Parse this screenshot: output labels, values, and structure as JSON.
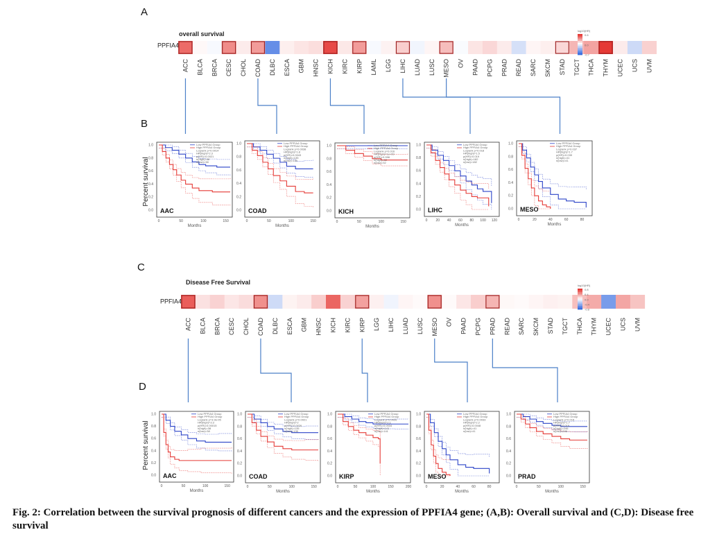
{
  "panel_labels": {
    "a": "A",
    "b": "B",
    "c": "C",
    "d": "D"
  },
  "caption": "Fig. 2: Correlation between the survival prognosis of different cancers and the expression of PPFIA4 gene; (A,B): Overall survival and (C,D): Disease free survival",
  "colors": {
    "high": "#e53935",
    "low": "#2b43c8",
    "pos": "#e53935",
    "neg": "#3b6fe0",
    "connector": "#4a7fc8",
    "box": "#9a2020"
  },
  "chart_data": [
    {
      "type": "heatmap",
      "title": "overall survival",
      "row_label": "PPFIA4",
      "legend_title": "log10(HR)",
      "legend_ticks": [
        "0.6",
        "0.0",
        "-0.7"
      ],
      "vmin": -0.7,
      "vmax": 0.6,
      "categories": [
        "ACC",
        "BLCA",
        "BRCA",
        "CESC",
        "CHOL",
        "COAD",
        "DLBC",
        "ESCA",
        "GBM",
        "HNSC",
        "KICH",
        "KIRC",
        "KIRP",
        "LAML",
        "LGG",
        "LIHC",
        "LUAD",
        "LUSC",
        "MESO",
        "OV",
        "PAAD",
        "PCPG",
        "PRAD",
        "READ",
        "SARC",
        "SKCM",
        "STAD",
        "TGCT",
        "THCA",
        "THYM",
        "UCEC",
        "UCS",
        "UVM"
      ],
      "values": [
        0.45,
        0.02,
        -0.03,
        0.35,
        0.06,
        0.3,
        -0.55,
        0.05,
        0.08,
        0.1,
        0.55,
        0.07,
        0.3,
        -0.03,
        0.04,
        0.15,
        -0.05,
        0.03,
        0.2,
        -0.02,
        0.08,
        0.12,
        0.06,
        -0.15,
        0.03,
        0.05,
        0.12,
        0.22,
        0.28,
        0.6,
        0.06,
        -0.18,
        0.14
      ],
      "significant": [
        "ACC",
        "CESC",
        "COAD",
        "KICH",
        "KIRP",
        "LIHC",
        "MESO",
        "STAD",
        "THYM"
      ],
      "linked": [
        "ACC",
        "COAD",
        "KICH",
        "LIHC",
        "MESO"
      ]
    },
    {
      "type": "line",
      "group": "overall survival",
      "ylabel": "Percent survival",
      "plots": [
        {
          "label": "AAC",
          "xlabel": "Months",
          "xticks": [
            0,
            50,
            100,
            150
          ],
          "xmax": 160,
          "legend": [
            "Low PPFIA4 Group",
            "High PPFIA4 Group",
            "Logrank p=0.0014",
            "HR(high)=2.3",
            "p(HR)=0.0021",
            "n(high)=38",
            "n(low)=38"
          ],
          "series": [
            {
              "name": "Low PPFIA4 Group",
              "x": [
                0,
                15,
                30,
                45,
                60,
                75,
                90,
                105,
                130,
                160
              ],
              "y": [
                1,
                0.96,
                0.92,
                0.86,
                0.8,
                0.74,
                0.7,
                0.68,
                0.66,
                0.66
              ]
            },
            {
              "name": "High PPFIA4 Group",
              "x": [
                0,
                8,
                16,
                24,
                32,
                40,
                50,
                60,
                75,
                90,
                120,
                160
              ],
              "y": [
                1,
                0.9,
                0.8,
                0.7,
                0.62,
                0.54,
                0.46,
                0.4,
                0.34,
                0.3,
                0.28,
                0.28
              ]
            }
          ]
        },
        {
          "label": "COAD",
          "xlabel": "Months",
          "xticks": [
            0,
            50,
            100,
            150
          ],
          "xmax": 160,
          "legend": [
            "Low PPFIA4 Group",
            "High PPFIA4 Group",
            "Logrank p=0.0038",
            "HR(high)=1.8",
            "p(HR)=0.0043",
            "n(high)=135",
            "n(low)=135"
          ],
          "series": [
            {
              "name": "Low PPFIA4 Group",
              "x": [
                0,
                15,
                30,
                45,
                60,
                75,
                90,
                110,
                130,
                150
              ],
              "y": [
                1,
                0.95,
                0.9,
                0.84,
                0.78,
                0.72,
                0.66,
                0.62,
                0.62,
                0.62
              ]
            },
            {
              "name": "High PPFIA4 Group",
              "x": [
                0,
                12,
                24,
                36,
                48,
                60,
                75,
                90,
                110,
                130,
                150
              ],
              "y": [
                1,
                0.9,
                0.82,
                0.72,
                0.62,
                0.52,
                0.44,
                0.36,
                0.28,
                0.26,
                0.26
              ]
            }
          ]
        },
        {
          "label": "KICH",
          "xlabel": "Months",
          "xticks": [
            0,
            50,
            100,
            150
          ],
          "xmax": 160,
          "legend": [
            "Low PPFIA4 Group",
            "High PPFIA4 Group",
            "Logrank p=0.016",
            "HR(high)=1e+09",
            "p(HR)=0.998",
            "n(high)=32",
            "n(low)=32"
          ],
          "series": [
            {
              "name": "Low PPFIA4 Group",
              "x": [
                0,
                40,
                80,
                120,
                160
              ],
              "y": [
                1,
                1,
                1,
                1,
                1
              ]
            },
            {
              "name": "High PPFIA4 Group",
              "x": [
                0,
                20,
                40,
                60,
                80,
                100,
                160
              ],
              "y": [
                1,
                0.93,
                0.88,
                0.84,
                0.8,
                0.78,
                0.78
              ]
            }
          ]
        },
        {
          "label": "LIHC",
          "xlabel": "Months",
          "xticks": [
            0,
            20,
            40,
            60,
            80,
            100,
            120
          ],
          "xmax": 125,
          "legend": [
            "Low PPFIA4 Group",
            "High PPFIA4 Group",
            "Logrank p=0.018",
            "HR(high)=1.5",
            "p(HR)=0.019",
            "n(high)=182",
            "n(low)=182"
          ],
          "series": [
            {
              "name": "Low PPFIA4 Group",
              "x": [
                0,
                10,
                20,
                30,
                40,
                50,
                60,
                70,
                80,
                90,
                100,
                115
              ],
              "y": [
                1,
                0.92,
                0.84,
                0.76,
                0.68,
                0.6,
                0.52,
                0.44,
                0.38,
                0.32,
                0.28,
                0.1
              ]
            },
            {
              "name": "High PPFIA4 Group",
              "x": [
                0,
                8,
                16,
                24,
                32,
                40,
                50,
                60,
                70,
                80,
                90,
                110
              ],
              "y": [
                1,
                0.88,
                0.76,
                0.65,
                0.55,
                0.46,
                0.38,
                0.3,
                0.25,
                0.2,
                0.18,
                0.05
              ]
            }
          ]
        },
        {
          "label": "MESO",
          "xlabel": "Months",
          "xticks": [
            0,
            20,
            40,
            60,
            80
          ],
          "xmax": 90,
          "legend": [
            "Low PPFIA4 Group",
            "High PPFIA4 Group",
            "Logrank p=0.037",
            "HR(high)=1.7",
            "p(HR)=0.039",
            "n(high)=41",
            "n(low)=41"
          ],
          "series": [
            {
              "name": "Low PPFIA4 Group",
              "x": [
                0,
                5,
                10,
                15,
                20,
                25,
                30,
                40,
                50,
                60,
                70,
                85
              ],
              "y": [
                1,
                0.9,
                0.78,
                0.64,
                0.52,
                0.42,
                0.32,
                0.22,
                0.15,
                0.12,
                0.1,
                0.02
              ]
            },
            {
              "name": "High PPFIA4 Group",
              "x": [
                0,
                4,
                8,
                12,
                16,
                20,
                25,
                30,
                35,
                40
              ],
              "y": [
                1,
                0.82,
                0.62,
                0.46,
                0.32,
                0.2,
                0.12,
                0.06,
                0.03,
                0
              ]
            }
          ]
        }
      ]
    },
    {
      "type": "heatmap",
      "title": "Disease Free Survival",
      "row_label": "PPFIA4",
      "legend_title": "log10(HR)",
      "legend_ticks": [
        "0.8",
        "0.4",
        "0.0",
        "-0.4",
        "-0.8"
      ],
      "vmin": -0.8,
      "vmax": 0.8,
      "categories": [
        "ACC",
        "BLCA",
        "BRCA",
        "CESC",
        "CHOL",
        "COAD",
        "DLBC",
        "ESCA",
        "GBM",
        "HNSC",
        "KICH",
        "KIRC",
        "KIRP",
        "LGG",
        "LIHC",
        "LUAD",
        "LUSC",
        "MESO",
        "OV",
        "PAAD",
        "PCPG",
        "PRAD",
        "READ",
        "SARC",
        "SKCM",
        "STAD",
        "TGCT",
        "THCA",
        "THYM",
        "UCEC",
        "UCS",
        "UVM"
      ],
      "values": [
        0.65,
        0.12,
        0.18,
        0.1,
        0.14,
        0.45,
        -0.2,
        0.05,
        0.08,
        0.2,
        0.62,
        0.18,
        0.38,
        0.06,
        -0.06,
        0.04,
        0.02,
        0.45,
        0.02,
        0.1,
        0.2,
        0.3,
        0.03,
        0.02,
        0.04,
        0.06,
        0.05,
        0.26,
        0.34,
        -0.55,
        0.36,
        0.24
      ],
      "significant": [
        "ACC",
        "COAD",
        "KIRP",
        "MESO",
        "PRAD"
      ],
      "linked": [
        "ACC",
        "COAD",
        "KIRP",
        "MESO",
        "PRAD"
      ]
    },
    {
      "type": "line",
      "group": "disease free survival",
      "ylabel": "Percent survival",
      "plots": [
        {
          "label": "AAC",
          "xlabel": "Months",
          "xticks": [
            0,
            50,
            100,
            150
          ],
          "xmax": 160,
          "legend": [
            "Low PPFIA4 Group",
            "High PPFIA4 Group",
            "Logrank p=3.9e-05",
            "HR(high)=3.3",
            "p(HR)=0.00015",
            "n(high)=38",
            "n(low)=38"
          ],
          "series": [
            {
              "name": "Low PPFIA4 Group",
              "x": [
                0,
                10,
                20,
                30,
                45,
                60,
                80,
                100,
                130,
                160
              ],
              "y": [
                1,
                0.9,
                0.8,
                0.72,
                0.66,
                0.6,
                0.56,
                0.54,
                0.54,
                0.54
              ]
            },
            {
              "name": "High PPFIA4 Group",
              "x": [
                0,
                5,
                10,
                15,
                20,
                30,
                40,
                60,
                90,
                160
              ],
              "y": [
                1,
                0.7,
                0.5,
                0.38,
                0.3,
                0.26,
                0.24,
                0.24,
                0.24,
                0.24
              ]
            }
          ]
        },
        {
          "label": "COAD",
          "xlabel": "Months",
          "xticks": [
            0,
            50,
            100,
            150
          ],
          "xmax": 160,
          "legend": [
            "Low PPFIA4 Group",
            "High PPFIA4 Group",
            "Logrank p=0.0021",
            "HR(high)=2",
            "p(HR)=0.0026",
            "n(high)=135",
            "n(low)=135"
          ],
          "series": [
            {
              "name": "Low PPFIA4 Group",
              "x": [
                0,
                15,
                30,
                45,
                60,
                80,
                100,
                130,
                160
              ],
              "y": [
                1,
                0.92,
                0.86,
                0.8,
                0.76,
                0.72,
                0.7,
                0.7,
                0.7
              ]
            },
            {
              "name": "High PPFIA4 Group",
              "x": [
                0,
                10,
                20,
                30,
                45,
                60,
                80,
                100,
                130,
                160
              ],
              "y": [
                1,
                0.86,
                0.74,
                0.64,
                0.55,
                0.48,
                0.44,
                0.42,
                0.42,
                0.42
              ]
            }
          ]
        },
        {
          "label": "KIRP",
          "xlabel": "Months",
          "xticks": [
            0,
            50,
            100,
            150,
            200
          ],
          "xmax": 200,
          "legend": [
            "Low PPFIA4 Group",
            "High PPFIA4 Group",
            "Logrank p=0.0026",
            "HR(high)=2.1",
            "p(HR)=0.0034",
            "n(high)=141",
            "n(low)=141"
          ],
          "series": [
            {
              "name": "Low PPFIA4 Group",
              "x": [
                0,
                20,
                40,
                60,
                80,
                100,
                130,
                160,
                200
              ],
              "y": [
                1,
                0.96,
                0.92,
                0.88,
                0.86,
                0.84,
                0.84,
                0.84,
                0.84
              ]
            },
            {
              "name": "High PPFIA4 Group",
              "x": [
                0,
                15,
                30,
                45,
                60,
                80,
                100,
                115,
                120
              ],
              "y": [
                1,
                0.88,
                0.8,
                0.74,
                0.7,
                0.66,
                0.62,
                0.6,
                0.2
              ]
            }
          ]
        },
        {
          "label": "MESO",
          "xlabel": "Months",
          "xticks": [
            0,
            20,
            40,
            60,
            80
          ],
          "xmax": 90,
          "legend": [
            "Low PPFIA4 Group",
            "High PPFIA4 Group",
            "Logrank p=0.0033",
            "HR(high)=2.2",
            "p(HR)=0.0048",
            "n(high)=41",
            "n(low)=41"
          ],
          "series": [
            {
              "name": "Low PPFIA4 Group",
              "x": [
                0,
                5,
                10,
                15,
                20,
                25,
                30,
                40,
                50,
                60,
                80
              ],
              "y": [
                1,
                0.86,
                0.7,
                0.56,
                0.44,
                0.34,
                0.26,
                0.18,
                0.14,
                0.12,
                0.04
              ]
            },
            {
              "name": "High PPFIA4 Group",
              "x": [
                0,
                3,
                6,
                9,
                12,
                15,
                20,
                25,
                30
              ],
              "y": [
                1,
                0.74,
                0.5,
                0.32,
                0.2,
                0.12,
                0.06,
                0.02,
                0
              ]
            }
          ]
        },
        {
          "label": "PRAD",
          "xlabel": "Months",
          "xticks": [
            0,
            50,
            100,
            150
          ],
          "xmax": 160,
          "legend": [
            "Low PPFIA4 Group",
            "High PPFIA4 Group",
            "Logrank p=0.018",
            "HR(high)=1.7",
            "p(HR)=0.019",
            "n(high)=246",
            "n(low)=246"
          ],
          "series": [
            {
              "name": "Low PPFIA4 Group",
              "x": [
                0,
                15,
                30,
                45,
                60,
                80,
                100,
                130,
                160
              ],
              "y": [
                1,
                0.96,
                0.92,
                0.88,
                0.85,
                0.82,
                0.8,
                0.8,
                0.8
              ]
            },
            {
              "name": "High PPFIA4 Group",
              "x": [
                0,
                10,
                20,
                30,
                45,
                60,
                80,
                100,
                120,
                160
              ],
              "y": [
                1,
                0.92,
                0.84,
                0.78,
                0.72,
                0.68,
                0.64,
                0.6,
                0.58,
                0.58
              ]
            }
          ]
        }
      ]
    }
  ]
}
